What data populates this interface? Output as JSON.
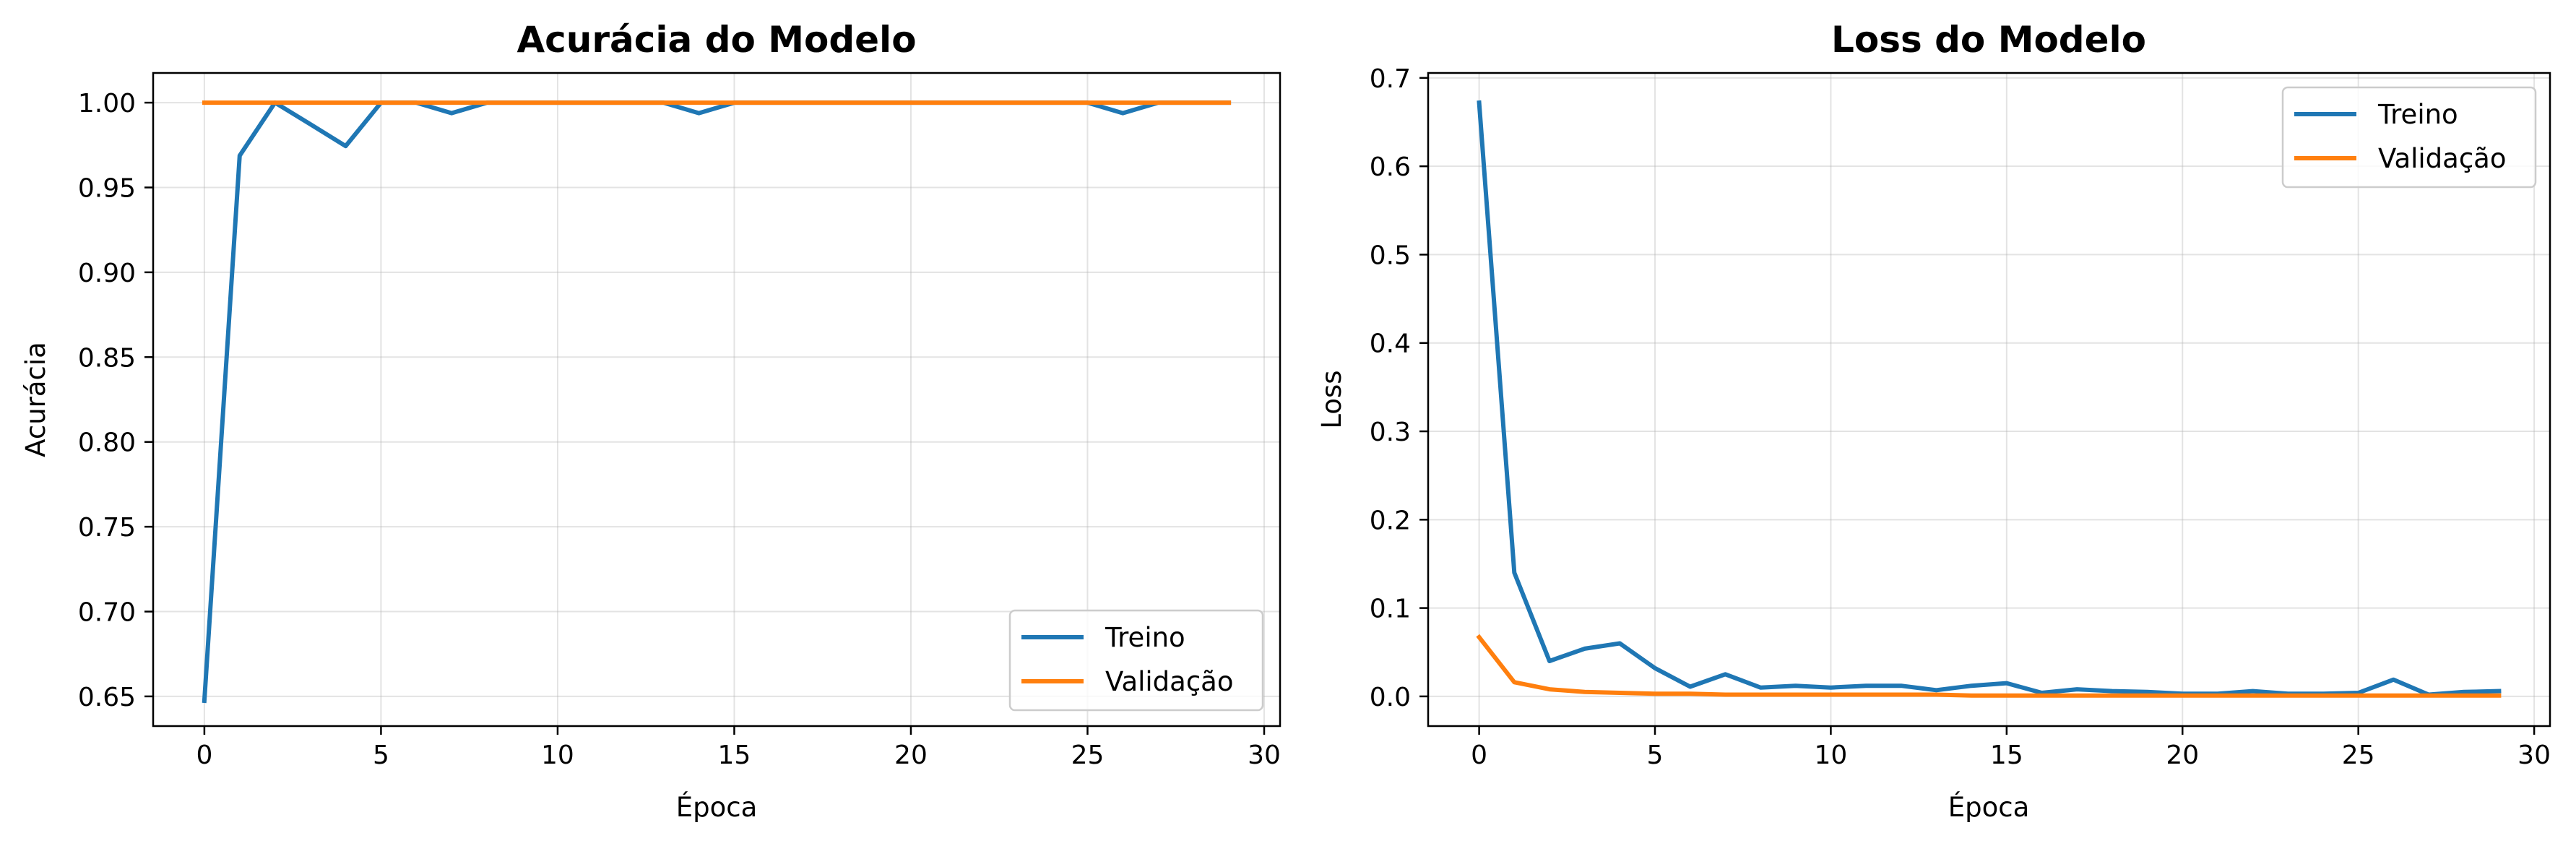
{
  "chart_data": [
    {
      "type": "line",
      "title": "Acurácia do Modelo",
      "xlabel": "Época",
      "ylabel": "Acurácia",
      "xlim": [
        -1.45,
        30.45
      ],
      "ylim": [
        0.6325,
        1.0175
      ],
      "xticks": [
        0,
        5,
        10,
        15,
        20,
        25,
        30
      ],
      "yticks": [
        0.65,
        0.7,
        0.75,
        0.8,
        0.85,
        0.9,
        0.95,
        1.0
      ],
      "ytick_decimals": 2,
      "grid": true,
      "legend_position": "lower right",
      "x": [
        0,
        1,
        2,
        3,
        4,
        5,
        6,
        7,
        8,
        9,
        10,
        11,
        12,
        13,
        14,
        15,
        16,
        17,
        18,
        19,
        20,
        21,
        22,
        23,
        24,
        25,
        26,
        27,
        28,
        29
      ],
      "series": [
        {
          "name": "Treino",
          "color": "#1f77b4",
          "values": [
            0.6474,
            0.9688,
            1.0,
            0.9873,
            0.9744,
            1.0,
            1.0,
            0.9938,
            1.0,
            1.0,
            1.0,
            1.0,
            1.0,
            1.0,
            0.9938,
            1.0,
            1.0,
            1.0,
            1.0,
            1.0,
            1.0,
            1.0,
            1.0,
            1.0,
            1.0,
            1.0,
            0.9938,
            1.0,
            1.0,
            1.0
          ]
        },
        {
          "name": "Validação",
          "color": "#ff7f0e",
          "values": [
            1.0,
            1.0,
            1.0,
            1.0,
            1.0,
            1.0,
            1.0,
            1.0,
            1.0,
            1.0,
            1.0,
            1.0,
            1.0,
            1.0,
            1.0,
            1.0,
            1.0,
            1.0,
            1.0,
            1.0,
            1.0,
            1.0,
            1.0,
            1.0,
            1.0,
            1.0,
            1.0,
            1.0,
            1.0,
            1.0
          ]
        }
      ]
    },
    {
      "type": "line",
      "title": "Loss do Modelo",
      "xlabel": "Época",
      "ylabel": "Loss",
      "xlim": [
        -1.45,
        30.45
      ],
      "ylim": [
        -0.0336,
        0.7056
      ],
      "xticks": [
        0,
        5,
        10,
        15,
        20,
        25,
        30
      ],
      "yticks": [
        0.0,
        0.1,
        0.2,
        0.3,
        0.4,
        0.5,
        0.6,
        0.7
      ],
      "ytick_decimals": 1,
      "grid": true,
      "legend_position": "upper right",
      "x": [
        0,
        1,
        2,
        3,
        4,
        5,
        6,
        7,
        8,
        9,
        10,
        11,
        12,
        13,
        14,
        15,
        16,
        17,
        18,
        19,
        20,
        21,
        22,
        23,
        24,
        25,
        26,
        27,
        28,
        29
      ],
      "series": [
        {
          "name": "Treino",
          "color": "#1f77b4",
          "values": [
            0.672,
            0.14,
            0.04,
            0.054,
            0.06,
            0.032,
            0.011,
            0.025,
            0.01,
            0.012,
            0.01,
            0.012,
            0.012,
            0.007,
            0.012,
            0.015,
            0.004,
            0.008,
            0.006,
            0.005,
            0.003,
            0.003,
            0.006,
            0.003,
            0.003,
            0.004,
            0.019,
            0.002,
            0.005,
            0.006
          ]
        },
        {
          "name": "Validação",
          "color": "#ff7f0e",
          "values": [
            0.067,
            0.016,
            0.008,
            0.005,
            0.004,
            0.003,
            0.003,
            0.002,
            0.002,
            0.002,
            0.002,
            0.002,
            0.002,
            0.002,
            0.001,
            0.001,
            0.001,
            0.001,
            0.001,
            0.001,
            0.001,
            0.001,
            0.001,
            0.001,
            0.001,
            0.001,
            0.001,
            0.001,
            0.001,
            0.001
          ]
        }
      ]
    }
  ]
}
